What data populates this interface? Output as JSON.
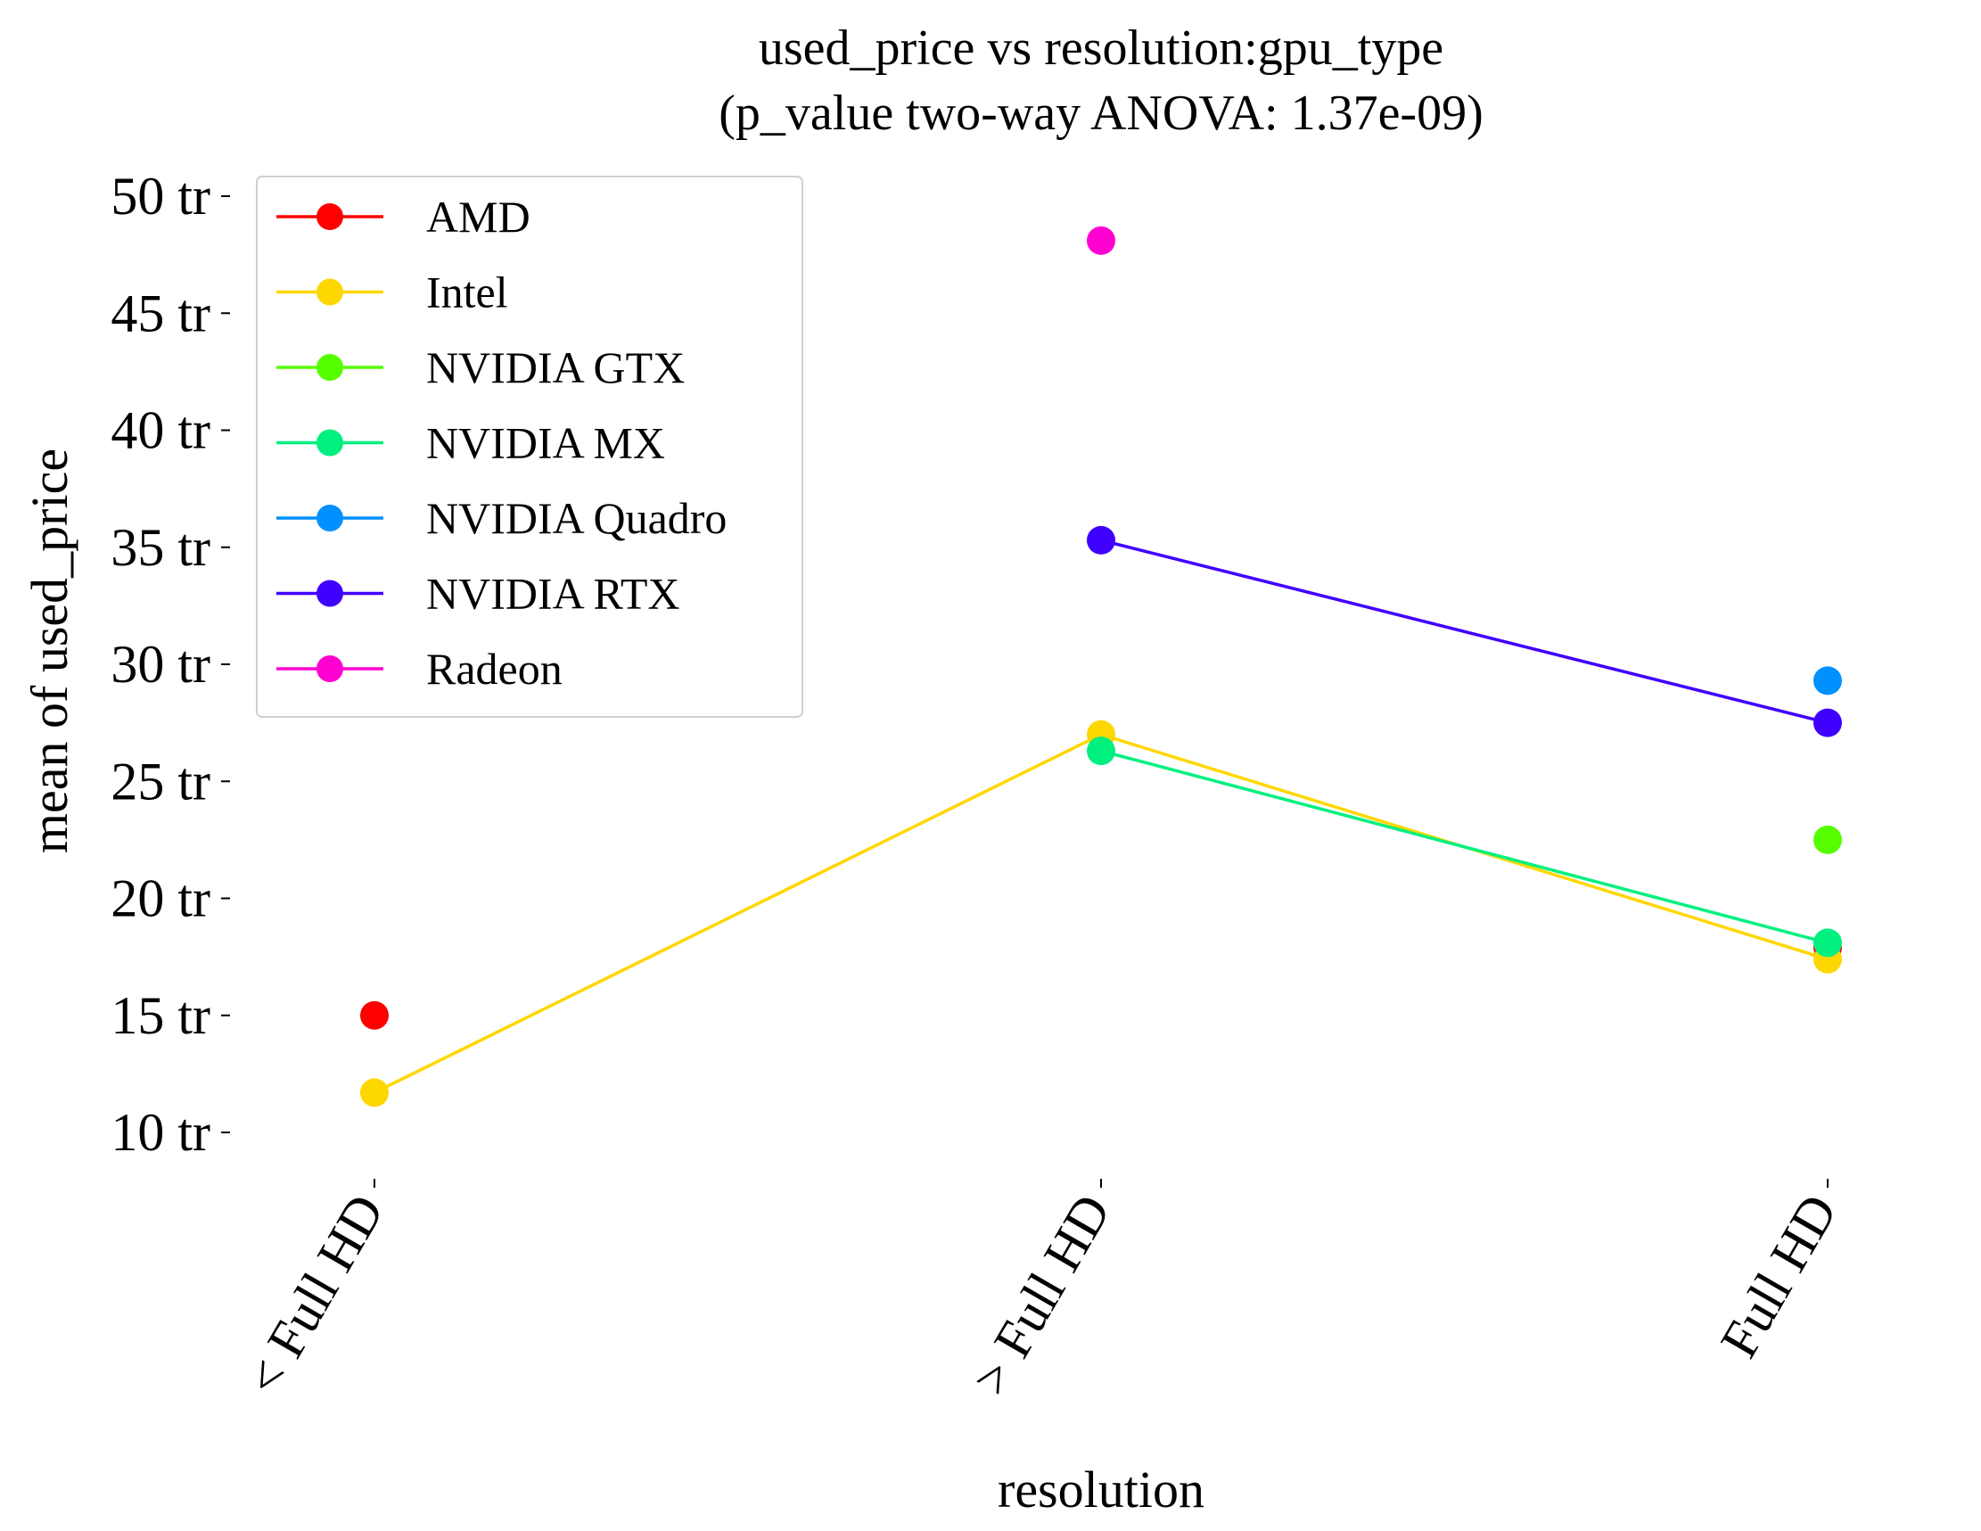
{
  "chart_data": {
    "type": "line",
    "title": "used_price vs resolution:gpu_type",
    "subtitle": "(p_value two-way ANOVA: 1.37e-09)",
    "xlabel": "resolution",
    "ylabel": "mean of used_price",
    "categories": [
      "< Full HD",
      "> Full HD",
      "Full HD"
    ],
    "y_ticks": [
      {
        "value": 10,
        "label": "10 tr"
      },
      {
        "value": 15,
        "label": "15 tr"
      },
      {
        "value": 20,
        "label": "20 tr"
      },
      {
        "value": 25,
        "label": "25 tr"
      },
      {
        "value": 30,
        "label": "30 tr"
      },
      {
        "value": 35,
        "label": "35 tr"
      },
      {
        "value": 40,
        "label": "40 tr"
      },
      {
        "value": 45,
        "label": "45 tr"
      },
      {
        "value": 50,
        "label": "50 tr"
      }
    ],
    "ylim": [
      8,
      51
    ],
    "y_unit": "million (tr)",
    "grid": false,
    "legend_position": "top-left",
    "series": [
      {
        "name": "AMD",
        "color": "#ff0000",
        "values": [
          15.0,
          null,
          17.9
        ]
      },
      {
        "name": "Intel",
        "color": "#ffd700",
        "values": [
          11.7,
          27.0,
          17.4
        ]
      },
      {
        "name": "NVIDIA GTX",
        "color": "#55ff00",
        "values": [
          null,
          null,
          22.5
        ]
      },
      {
        "name": "NVIDIA MX",
        "color": "#00f080",
        "values": [
          null,
          26.3,
          18.1
        ]
      },
      {
        "name": "NVIDIA Quadro",
        "color": "#0090ff",
        "values": [
          null,
          null,
          29.3
        ]
      },
      {
        "name": "NVIDIA RTX",
        "color": "#4000ff",
        "values": [
          null,
          35.3,
          27.5
        ]
      },
      {
        "name": "Radeon",
        "color": "#ff00d0",
        "values": [
          null,
          48.1,
          null
        ]
      }
    ]
  }
}
